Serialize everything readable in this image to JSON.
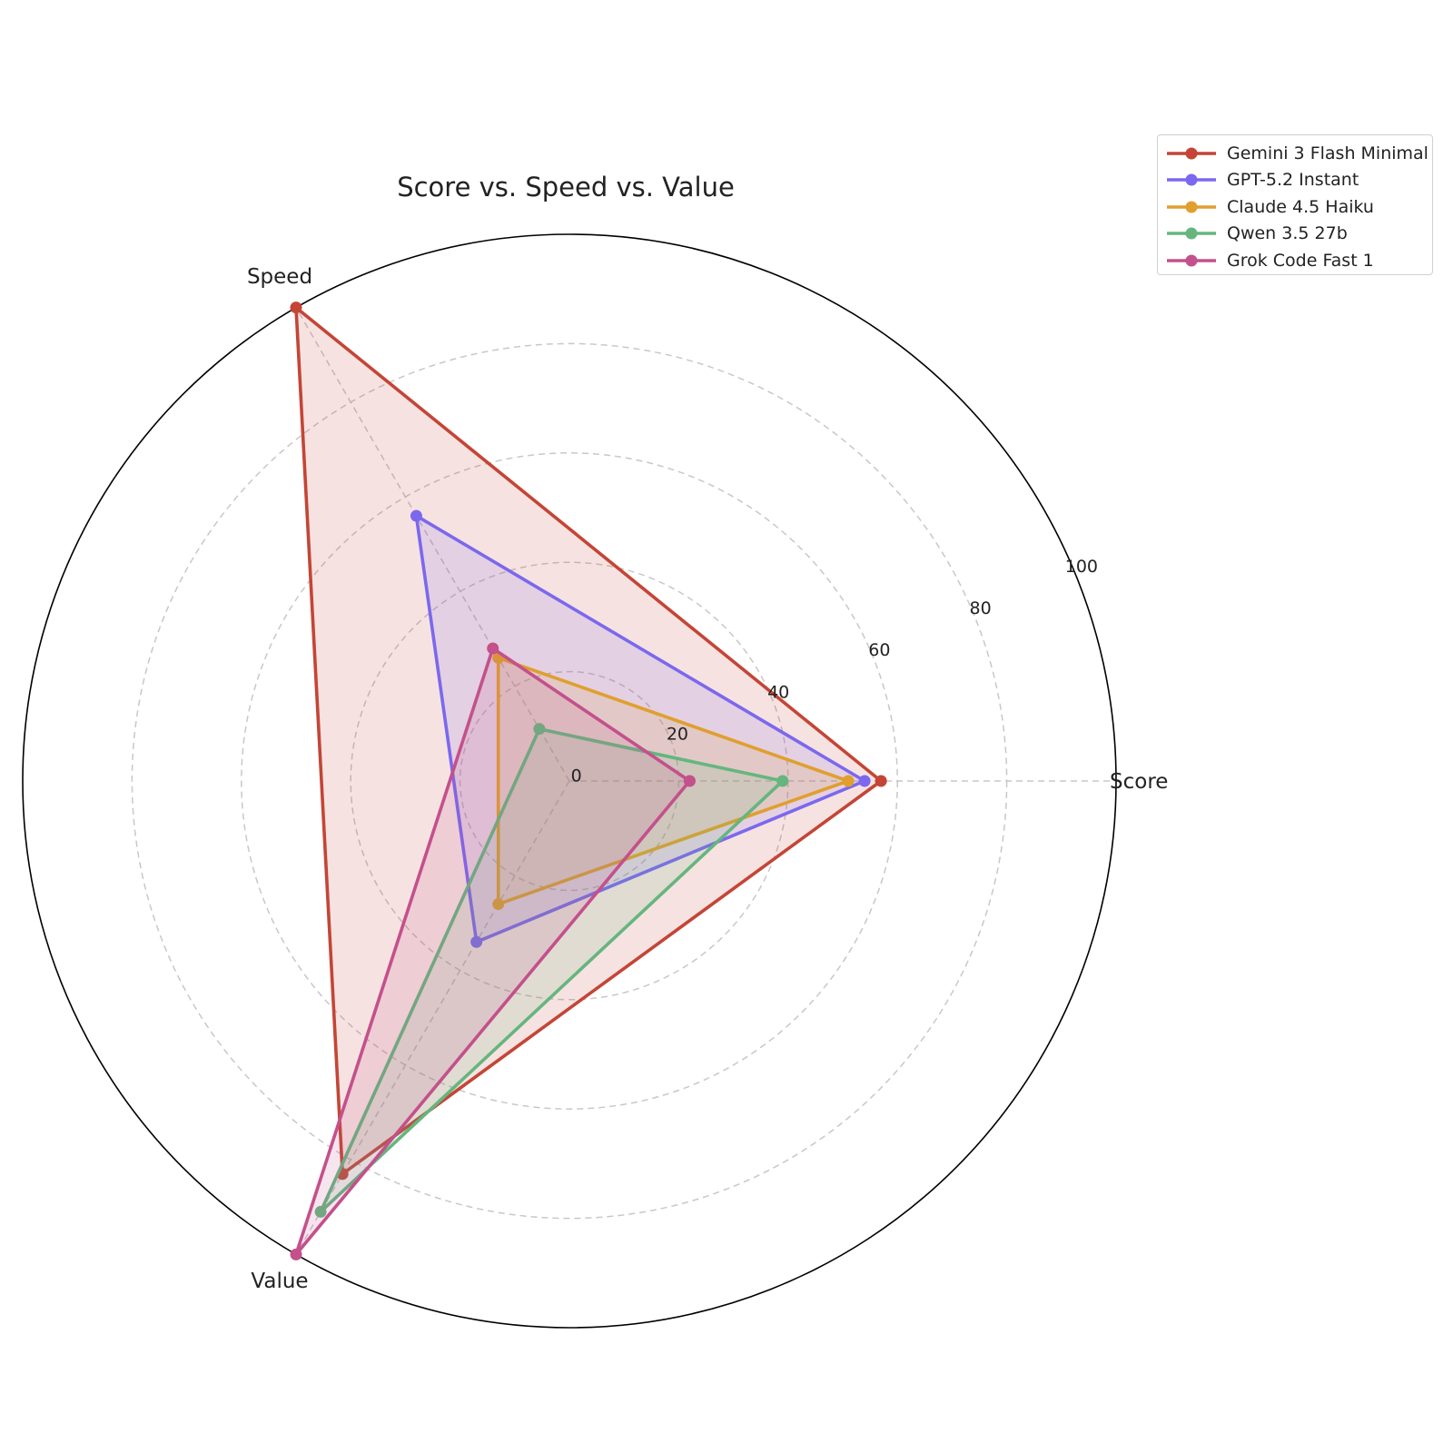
{
  "chart_data": {
    "type": "radar",
    "title": "Score vs. Speed vs. Value",
    "axes": [
      "Score",
      "Speed",
      "Value"
    ],
    "rlim": [
      0,
      100
    ],
    "rticks": [
      0,
      20,
      40,
      60,
      80,
      100
    ],
    "grid": true,
    "legend_position": "top-right, outside plot",
    "series": [
      {
        "name": "Gemini 3 Flash Minimal",
        "values": [
          57,
          100,
          83
        ],
        "color": "#c44536"
      },
      {
        "name": "GPT-5.2 Instant",
        "values": [
          54,
          56,
          34
        ],
        "color": "#7b68ee"
      },
      {
        "name": "Claude 4.5 Haiku",
        "values": [
          51,
          26,
          26
        ],
        "color": "#e09f2e"
      },
      {
        "name": "Qwen 3.5 27b",
        "values": [
          39,
          11,
          91
        ],
        "color": "#66b57f"
      },
      {
        "name": "Grok Code Fast 1",
        "values": [
          22,
          28,
          100
        ],
        "color": "#c4508c"
      }
    ]
  }
}
